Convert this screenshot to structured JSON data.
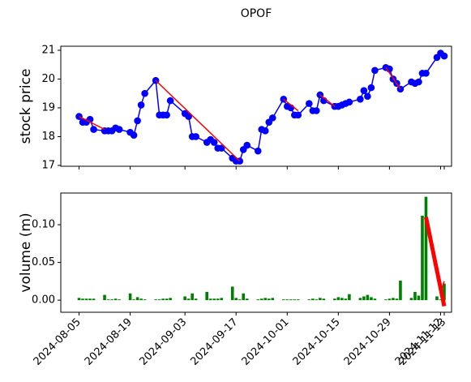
{
  "chart_data": [
    {
      "type": "line",
      "title": "OPOF",
      "ylabel": "stock price",
      "label_color": "#0000ff",
      "color": "#0000ff",
      "trend_color": "#ff0000",
      "x": [
        "2024-08-05",
        "2024-08-06",
        "2024-08-07",
        "2024-08-08",
        "2024-08-09",
        "2024-08-12",
        "2024-08-13",
        "2024-08-14",
        "2024-08-15",
        "2024-08-16",
        "2024-08-19",
        "2024-08-20",
        "2024-08-21",
        "2024-08-22",
        "2024-08-23",
        "2024-08-26",
        "2024-08-27",
        "2024-08-28",
        "2024-08-29",
        "2024-08-30",
        "2024-09-03",
        "2024-09-04",
        "2024-09-05",
        "2024-09-06",
        "2024-09-09",
        "2024-09-10",
        "2024-09-11",
        "2024-09-12",
        "2024-09-13",
        "2024-09-16",
        "2024-09-17",
        "2024-09-18",
        "2024-09-19",
        "2024-09-20",
        "2024-09-23",
        "2024-09-24",
        "2024-09-25",
        "2024-09-26",
        "2024-09-27",
        "2024-09-30",
        "2024-10-01",
        "2024-10-02",
        "2024-10-03",
        "2024-10-04",
        "2024-10-07",
        "2024-10-08",
        "2024-10-09",
        "2024-10-10",
        "2024-10-11",
        "2024-10-14",
        "2024-10-15",
        "2024-10-16",
        "2024-10-17",
        "2024-10-18",
        "2024-10-21",
        "2024-10-22",
        "2024-10-23",
        "2024-10-24",
        "2024-10-25",
        "2024-10-28",
        "2024-10-29",
        "2024-10-30",
        "2024-10-31",
        "2024-11-01",
        "2024-11-04",
        "2024-11-05",
        "2024-11-06",
        "2024-11-07",
        "2024-11-08",
        "2024-11-11",
        "2024-11-12",
        "2024-11-13"
      ],
      "values": [
        18.7,
        18.5,
        18.5,
        18.6,
        18.25,
        18.2,
        18.2,
        18.2,
        18.3,
        18.25,
        18.15,
        18.05,
        18.55,
        19.1,
        19.5,
        19.95,
        18.75,
        18.75,
        18.75,
        19.25,
        18.8,
        18.7,
        18.0,
        18.0,
        17.8,
        17.9,
        17.8,
        17.6,
        17.6,
        17.25,
        17.15,
        17.15,
        17.55,
        17.7,
        17.5,
        18.25,
        18.2,
        18.5,
        18.65,
        19.3,
        19.05,
        19.0,
        18.75,
        18.75,
        19.15,
        18.9,
        18.9,
        19.45,
        19.25,
        19.05,
        19.05,
        19.1,
        19.15,
        19.2,
        19.3,
        19.6,
        19.4,
        19.7,
        20.3,
        20.4,
        20.35,
        20.0,
        19.85,
        19.65,
        19.9,
        19.85,
        19.9,
        20.2,
        20.2,
        20.75,
        20.9,
        20.8
      ],
      "trend_lines": [
        {
          "x": [
            "2024-08-05",
            "2024-08-12"
          ],
          "y": [
            18.7,
            18.25
          ]
        },
        {
          "x": [
            "2024-08-26",
            "2024-09-18"
          ],
          "y": [
            19.95,
            17.15
          ]
        },
        {
          "x": [
            "2024-09-30",
            "2024-10-04"
          ],
          "y": [
            19.3,
            18.9
          ]
        },
        {
          "x": [
            "2024-10-10",
            "2024-10-14"
          ],
          "y": [
            19.45,
            19.05
          ]
        },
        {
          "x": [
            "2024-10-28",
            "2024-11-01"
          ],
          "y": [
            20.4,
            19.65
          ]
        }
      ],
      "xlim": [
        "2024-07-31",
        "2024-11-15"
      ],
      "xticks": [
        "2024-08-05",
        "2024-08-19",
        "2024-09-03",
        "2024-09-17",
        "2024-10-01",
        "2024-10-15",
        "2024-10-29",
        "2024-11-12",
        "2024-11-13"
      ],
      "ylim": [
        16.97,
        21.14
      ],
      "yticks": [
        17,
        18,
        19,
        20,
        21
      ]
    },
    {
      "type": "bar",
      "ylabel": "volume (m)",
      "label_color": "#008000",
      "color": "#008000",
      "trend_color": "#ff0000",
      "x": [
        "2024-08-05",
        "2024-08-06",
        "2024-08-07",
        "2024-08-08",
        "2024-08-09",
        "2024-08-12",
        "2024-08-13",
        "2024-08-14",
        "2024-08-15",
        "2024-08-16",
        "2024-08-19",
        "2024-08-20",
        "2024-08-21",
        "2024-08-22",
        "2024-08-23",
        "2024-08-26",
        "2024-08-27",
        "2024-08-28",
        "2024-08-29",
        "2024-08-30",
        "2024-09-03",
        "2024-09-04",
        "2024-09-05",
        "2024-09-06",
        "2024-09-09",
        "2024-09-10",
        "2024-09-11",
        "2024-09-12",
        "2024-09-13",
        "2024-09-16",
        "2024-09-17",
        "2024-09-18",
        "2024-09-19",
        "2024-09-20",
        "2024-09-23",
        "2024-09-24",
        "2024-09-25",
        "2024-09-26",
        "2024-09-27",
        "2024-09-30",
        "2024-10-01",
        "2024-10-02",
        "2024-10-03",
        "2024-10-04",
        "2024-10-07",
        "2024-10-08",
        "2024-10-09",
        "2024-10-10",
        "2024-10-11",
        "2024-10-14",
        "2024-10-15",
        "2024-10-16",
        "2024-10-17",
        "2024-10-18",
        "2024-10-21",
        "2024-10-22",
        "2024-10-23",
        "2024-10-24",
        "2024-10-25",
        "2024-10-28",
        "2024-10-29",
        "2024-10-30",
        "2024-10-31",
        "2024-11-01",
        "2024-11-04",
        "2024-11-05",
        "2024-11-06",
        "2024-11-07",
        "2024-11-08",
        "2024-11-11",
        "2024-11-12",
        "2024-11-13"
      ],
      "values": [
        0.003,
        0.002,
        0.002,
        0.002,
        0.002,
        0.007,
        0.001,
        0.001,
        0.002,
        0.001,
        0.009,
        0.001,
        0.004,
        0.002,
        0.001,
        0.001,
        0.001,
        0.002,
        0.002,
        0.003,
        0.005,
        0.002,
        0.009,
        0.002,
        0.011,
        0.002,
        0.002,
        0.002,
        0.003,
        0.018,
        0.003,
        0.001,
        0.009,
        0.002,
        0.001,
        0.002,
        0.003,
        0.002,
        0.003,
        0.001,
        0.001,
        0.001,
        0.001,
        0.001,
        0.001,
        0.002,
        0.001,
        0.003,
        0.002,
        0.002,
        0.004,
        0.003,
        0.002,
        0.008,
        0.003,
        0.005,
        0.007,
        0.004,
        0.002,
        0.001,
        0.002,
        0.003,
        0.002,
        0.026,
        0.003,
        0.011,
        0.006,
        0.112,
        0.137,
        0.005,
        0.001,
        0.022
      ],
      "trend_lines": [
        {
          "x": [
            "2024-11-08",
            "2024-11-13"
          ],
          "y": [
            0.11,
            -0.008
          ]
        },
        {
          "x": [
            "2024-11-12",
            "2024-11-13"
          ],
          "y": [
            0.01,
            0.025
          ]
        }
      ],
      "xlim": [
        "2024-07-31",
        "2024-11-15"
      ],
      "xticks": [
        "2024-08-05",
        "2024-08-19",
        "2024-09-03",
        "2024-09-17",
        "2024-10-01",
        "2024-10-15",
        "2024-10-29",
        "2024-11-12",
        "2024-11-13"
      ],
      "ylim": [
        -0.016,
        0.142
      ],
      "yticks": [
        {
          "value": 0,
          "label": "0.00"
        },
        {
          "value": 0.05,
          "label": "0.05"
        },
        {
          "value": 0.1,
          "label": "0.10"
        }
      ]
    }
  ]
}
